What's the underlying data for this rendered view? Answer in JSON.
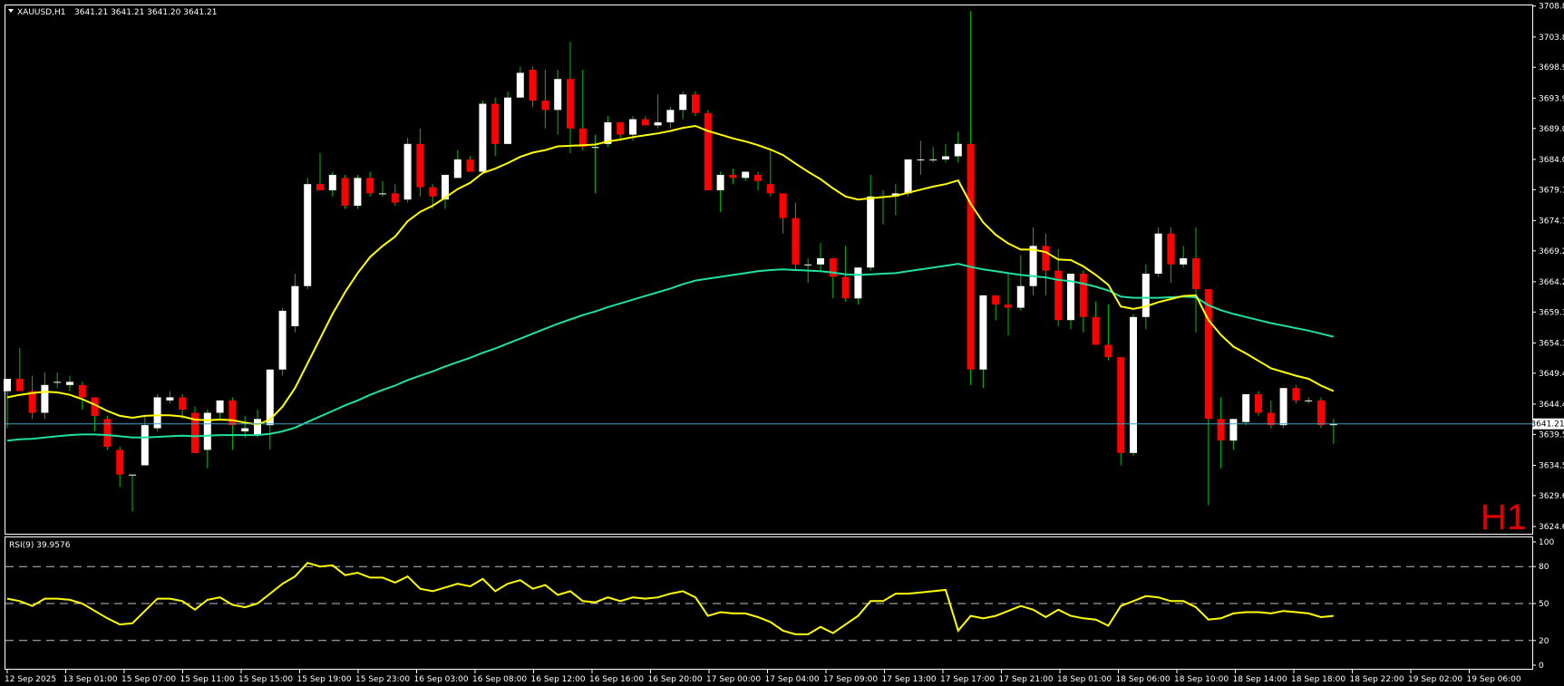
{
  "header": {
    "symbol": "XAUUSD,H1",
    "ohlc": "3641.21 3641.21 3641.20 3641.21"
  },
  "timeframe_label": "H1",
  "rsi": {
    "label": "RSI(9) 39.9576",
    "levels": [
      20,
      50,
      80
    ],
    "axis_labels": [
      "100",
      "80",
      "50",
      "20",
      "0"
    ]
  },
  "current_price": "3641.21",
  "colors": {
    "background": "#000000",
    "bull_body": "#ffffff",
    "bear_body": "#ff0000",
    "wick": "#00c000",
    "ma_fast": "#ffff00",
    "ma_slow": "#20e0a0",
    "rsi_line": "#ffff00",
    "price_line": "#3f9fbf",
    "axis": "#ffffff"
  },
  "chart_data": {
    "type": "candlestick",
    "symbol": "XAUUSD",
    "period": "H1",
    "y_axis": {
      "range": [
        3624.6,
        3709.2
      ],
      "tick_labels": [
        "3708.80",
        "3703.80",
        "3698.90",
        "3693.90",
        "3689.00",
        "3684.00",
        "3679.10",
        "3674.10",
        "3669.20",
        "3664.20",
        "3659.30",
        "3654.30",
        "3649.40",
        "3644.40",
        "3639.50",
        "3634.50",
        "3629.60",
        "3624.60"
      ]
    },
    "x_axis": {
      "tick_labels": [
        "12 Sep 2025",
        "13 Sep 01:00",
        "15 Sep 07:00",
        "15 Sep 11:00",
        "15 Sep 15:00",
        "15 Sep 19:00",
        "15 Sep 23:00",
        "16 Sep 03:00",
        "16 Sep 08:00",
        "16 Sep 12:00",
        "16 Sep 16:00",
        "16 Sep 20:00",
        "17 Sep 00:00",
        "17 Sep 04:00",
        "17 Sep 09:00",
        "17 Sep 13:00",
        "17 Sep 17:00",
        "17 Sep 21:00",
        "18 Sep 01:00",
        "18 Sep 06:00",
        "18 Sep 10:00",
        "18 Sep 14:00",
        "18 Sep 18:00",
        "18 Sep 22:00",
        "19 Sep 02:00",
        "19 Sep 06:00"
      ]
    },
    "ohlc": [
      [
        3646.5,
        3648.5,
        3640.5,
        3648.5
      ],
      [
        3648.5,
        3653.5,
        3647.0,
        3646.5
      ],
      [
        3646.5,
        3649.0,
        3642.0,
        3643.0
      ],
      [
        3643.0,
        3649.5,
        3642.0,
        3647.5
      ],
      [
        3648.0,
        3649.5,
        3647.0,
        3648.0
      ],
      [
        3647.5,
        3649.0,
        3646.5,
        3648.0
      ],
      [
        3647.5,
        3648.0,
        3643.5,
        3645.5
      ],
      [
        3645.5,
        3645.5,
        3640.0,
        3642.5
      ],
      [
        3642.0,
        3642.5,
        3637.0,
        3637.5
      ],
      [
        3637.0,
        3637.5,
        3631.0,
        3633.0
      ],
      [
        3633.0,
        3633.0,
        3627.0,
        3633.0
      ],
      [
        3634.5,
        3642.5,
        3634.5,
        3641.0
      ],
      [
        3640.5,
        3646.0,
        3640.0,
        3645.5
      ],
      [
        3645.0,
        3646.5,
        3644.5,
        3645.5
      ],
      [
        3645.5,
        3646.0,
        3642.0,
        3643.5
      ],
      [
        3643.0,
        3644.0,
        3636.5,
        3636.5
      ],
      [
        3637.0,
        3643.5,
        3634.0,
        3643.0
      ],
      [
        3643.0,
        3645.0,
        3642.0,
        3645.0
      ],
      [
        3645.0,
        3645.5,
        3637.0,
        3641.0
      ],
      [
        3640.0,
        3642.5,
        3639.0,
        3640.5
      ],
      [
        3639.5,
        3643.5,
        3639.0,
        3642.0
      ],
      [
        3641.0,
        3650.0,
        3637.0,
        3650.0
      ],
      [
        3650.0,
        3660.0,
        3649.0,
        3659.5
      ],
      [
        3657.0,
        3665.5,
        3656.0,
        3663.5
      ],
      [
        3663.5,
        3681.0,
        3663.0,
        3680.0
      ],
      [
        3680.0,
        3685.0,
        3679.0,
        3679.0
      ],
      [
        3679.0,
        3682.0,
        3678.0,
        3681.5
      ],
      [
        3681.0,
        3681.5,
        3676.0,
        3676.5
      ],
      [
        3676.5,
        3681.5,
        3676.0,
        3681.0
      ],
      [
        3681.0,
        3682.0,
        3678.0,
        3678.5
      ],
      [
        3678.5,
        3680.5,
        3678.0,
        3678.5
      ],
      [
        3678.5,
        3680.0,
        3676.5,
        3677.0
      ],
      [
        3677.5,
        3687.5,
        3677.0,
        3686.5
      ],
      [
        3686.5,
        3689.0,
        3678.0,
        3679.5
      ],
      [
        3679.5,
        3680.0,
        3676.0,
        3678.0
      ],
      [
        3677.5,
        3681.0,
        3676.0,
        3681.5
      ],
      [
        3681.0,
        3685.5,
        3681.0,
        3684.0
      ],
      [
        3684.0,
        3684.5,
        3682.0,
        3682.0
      ],
      [
        3682.0,
        3693.5,
        3682.0,
        3693.0
      ],
      [
        3693.0,
        3694.0,
        3684.5,
        3686.5
      ],
      [
        3686.5,
        3695.0,
        3686.5,
        3694.0
      ],
      [
        3694.0,
        3699.0,
        3694.0,
        3698.0
      ],
      [
        3698.5,
        3699.0,
        3692.5,
        3693.5
      ],
      [
        3693.5,
        3698.5,
        3689.0,
        3692.0
      ],
      [
        3692.0,
        3698.5,
        3688.0,
        3697.0
      ],
      [
        3697.0,
        3703.0,
        3685.0,
        3689.0
      ],
      [
        3689.0,
        3698.5,
        3685.5,
        3686.0
      ],
      [
        3686.0,
        3688.0,
        3678.5,
        3686.0
      ],
      [
        3686.5,
        3691.0,
        3686.0,
        3690.0
      ],
      [
        3690.0,
        3690.0,
        3687.0,
        3688.0
      ],
      [
        3688.0,
        3691.0,
        3687.0,
        3690.5
      ],
      [
        3690.5,
        3691.0,
        3689.5,
        3689.5
      ],
      [
        3689.5,
        3694.5,
        3689.0,
        3690.0
      ],
      [
        3690.0,
        3692.5,
        3689.0,
        3692.0
      ],
      [
        3692.0,
        3695.0,
        3690.5,
        3694.5
      ],
      [
        3694.5,
        3695.0,
        3691.0,
        3691.5
      ],
      [
        3691.5,
        3692.0,
        3679.0,
        3679.0
      ],
      [
        3679.0,
        3682.0,
        3675.5,
        3681.5
      ],
      [
        3681.5,
        3682.5,
        3680.0,
        3681.0
      ],
      [
        3681.0,
        3682.0,
        3680.5,
        3682.0
      ],
      [
        3681.5,
        3682.0,
        3679.0,
        3680.5
      ],
      [
        3680.0,
        3685.5,
        3678.0,
        3678.5
      ],
      [
        3678.5,
        3678.5,
        3672.0,
        3674.5
      ],
      [
        3674.5,
        3677.0,
        3666.0,
        3667.0
      ],
      [
        3667.0,
        3668.0,
        3664.0,
        3667.0
      ],
      [
        3667.0,
        3670.5,
        3666.0,
        3668.0
      ],
      [
        3668.0,
        3668.0,
        3661.5,
        3665.0
      ],
      [
        3665.0,
        3670.0,
        3661.0,
        3661.5
      ],
      [
        3661.5,
        3666.5,
        3660.5,
        3666.5
      ],
      [
        3666.5,
        3681.5,
        3666.0,
        3678.0
      ],
      [
        3678.0,
        3679.0,
        3673.5,
        3678.0
      ],
      [
        3678.0,
        3680.0,
        3675.0,
        3678.5
      ],
      [
        3678.5,
        3684.0,
        3678.0,
        3684.0
      ],
      [
        3684.0,
        3687.0,
        3681.5,
        3684.0
      ],
      [
        3684.0,
        3686.0,
        3683.5,
        3684.0
      ],
      [
        3684.0,
        3686.5,
        3683.5,
        3684.5
      ],
      [
        3684.5,
        3688.5,
        3683.5,
        3686.5
      ],
      [
        3686.5,
        3708.0,
        3647.5,
        3650.0
      ],
      [
        3650.0,
        3662.0,
        3647.0,
        3662.0
      ],
      [
        3662.0,
        3662.0,
        3658.0,
        3660.5
      ],
      [
        3660.5,
        3665.5,
        3655.5,
        3660.0
      ],
      [
        3660.0,
        3668.5,
        3659.5,
        3663.5
      ],
      [
        3663.5,
        3673.0,
        3662.0,
        3670.0
      ],
      [
        3670.0,
        3672.0,
        3662.0,
        3666.0
      ],
      [
        3666.0,
        3669.5,
        3657.0,
        3658.0
      ],
      [
        3658.0,
        3665.5,
        3656.5,
        3665.5
      ],
      [
        3665.5,
        3666.0,
        3656.0,
        3658.5
      ],
      [
        3658.5,
        3661.0,
        3654.0,
        3654.0
      ],
      [
        3654.0,
        3660.5,
        3651.5,
        3652.0
      ],
      [
        3652.0,
        3652.0,
        3634.5,
        3636.5
      ],
      [
        3636.5,
        3659.0,
        3636.0,
        3658.5
      ],
      [
        3658.5,
        3667.0,
        3656.5,
        3665.5
      ],
      [
        3665.5,
        3673.0,
        3665.0,
        3672.0
      ],
      [
        3672.0,
        3673.0,
        3664.0,
        3667.0
      ],
      [
        3667.0,
        3670.0,
        3666.5,
        3668.0
      ],
      [
        3668.0,
        3673.0,
        3656.0,
        3663.0
      ],
      [
        3663.0,
        3663.0,
        3628.0,
        3642.0
      ],
      [
        3642.0,
        3645.5,
        3634.0,
        3638.5
      ],
      [
        3638.5,
        3642.0,
        3637.0,
        3642.0
      ],
      [
        3641.5,
        3646.0,
        3641.0,
        3646.0
      ],
      [
        3646.0,
        3646.5,
        3642.5,
        3643.0
      ],
      [
        3643.0,
        3645.0,
        3640.5,
        3641.0
      ],
      [
        3641.0,
        3647.0,
        3640.5,
        3647.0
      ],
      [
        3647.0,
        3647.5,
        3644.5,
        3645.0
      ],
      [
        3645.0,
        3645.5,
        3644.5,
        3645.0
      ],
      [
        3645.0,
        3645.5,
        3640.5,
        3641.0
      ],
      [
        3641.0,
        3642.0,
        3638.0,
        3641.2
      ]
    ],
    "ma_fast": [
      3645.5,
      3645.9,
      3646.2,
      3646.4,
      3646.3,
      3645.9,
      3645.2,
      3644.3,
      3643.3,
      3642.5,
      3642.2,
      3642.5,
      3642.6,
      3642.6,
      3642.4,
      3641.9,
      3641.8,
      3641.9,
      3641.8,
      3641.4,
      3641.1,
      3641.9,
      3644.0,
      3647.0,
      3651.0,
      3655.0,
      3659.0,
      3662.5,
      3665.6,
      3668.2,
      3670.0,
      3671.5,
      3674.0,
      3675.5,
      3676.5,
      3677.8,
      3679.2,
      3680.2,
      3681.8,
      3682.5,
      3683.4,
      3684.4,
      3685.1,
      3685.5,
      3686.1,
      3686.2,
      3686.3,
      3686.4,
      3686.9,
      3687.2,
      3687.6,
      3687.9,
      3688.2,
      3688.6,
      3689.1,
      3689.4,
      3688.6,
      3688.0,
      3687.4,
      3686.9,
      3686.3,
      3685.6,
      3684.7,
      3683.3,
      3682.0,
      3680.8,
      3679.3,
      3678.0,
      3677.5,
      3677.7,
      3677.9,
      3678.1,
      3678.6,
      3679.1,
      3679.6,
      3680.0,
      3680.6,
      3676.8,
      3673.8,
      3671.8,
      3670.4,
      3669.4,
      3669.4,
      3669.0,
      3667.8,
      3667.7,
      3666.7,
      3665.3,
      3663.7,
      3660.2,
      3659.8,
      3660.2,
      3660.9,
      3661.4,
      3661.9,
      3662.0,
      3658.0,
      3655.6,
      3653.7,
      3652.6,
      3651.4,
      3650.2,
      3649.6,
      3649.0,
      3648.5,
      3647.4,
      3646.5
    ],
    "ma_slow": [
      3638.5,
      3638.7,
      3638.8,
      3639.0,
      3639.2,
      3639.4,
      3639.5,
      3639.5,
      3639.4,
      3639.2,
      3639.0,
      3639.0,
      3639.1,
      3639.2,
      3639.3,
      3639.2,
      3639.3,
      3639.4,
      3639.4,
      3639.4,
      3639.4,
      3639.6,
      3640.0,
      3640.6,
      3641.5,
      3642.4,
      3643.3,
      3644.2,
      3645.0,
      3645.9,
      3646.7,
      3647.4,
      3648.3,
      3649.0,
      3649.7,
      3650.5,
      3651.2,
      3651.9,
      3652.7,
      3653.4,
      3654.2,
      3655.0,
      3655.8,
      3656.6,
      3657.4,
      3658.1,
      3658.8,
      3659.4,
      3660.1,
      3660.7,
      3661.3,
      3661.9,
      3662.5,
      3663.1,
      3663.8,
      3664.4,
      3664.7,
      3665.0,
      3665.3,
      3665.6,
      3665.9,
      3666.1,
      3666.2,
      3666.1,
      3666.0,
      3665.9,
      3665.7,
      3665.4,
      3665.3,
      3665.4,
      3665.5,
      3665.6,
      3665.9,
      3666.2,
      3666.5,
      3666.8,
      3667.1,
      3666.6,
      3666.2,
      3665.9,
      3665.6,
      3665.3,
      3665.1,
      3664.9,
      3664.5,
      3664.3,
      3663.9,
      3663.4,
      3662.8,
      3661.8,
      3661.6,
      3661.6,
      3661.6,
      3661.7,
      3661.8,
      3661.7,
      3660.4,
      3659.6,
      3659.0,
      3658.5,
      3658.0,
      3657.5,
      3657.1,
      3656.7,
      3656.3,
      3655.8,
      3655.3
    ],
    "rsi": [
      54,
      52,
      48,
      54,
      54,
      53,
      50,
      44,
      38,
      33,
      34,
      44,
      54,
      54,
      52,
      45,
      53,
      55,
      49,
      47,
      50,
      58,
      66,
      72,
      83,
      80,
      81,
      73,
      75,
      71,
      71,
      67,
      72,
      62,
      60,
      63,
      66,
      64,
      70,
      60,
      66,
      69,
      62,
      65,
      57,
      60,
      52,
      51,
      55,
      52,
      55,
      54,
      55,
      58,
      60,
      55,
      40,
      43,
      42,
      42,
      39,
      35,
      28,
      25,
      25,
      31,
      26,
      33,
      40,
      52,
      52,
      58,
      58,
      59,
      60,
      61,
      28,
      40,
      38,
      40,
      44,
      48,
      45,
      39,
      45,
      40,
      38,
      37,
      32,
      48,
      52,
      56,
      55,
      52,
      52,
      47,
      37,
      38,
      42,
      43,
      43,
      42,
      44,
      43,
      42,
      39,
      40
    ]
  }
}
